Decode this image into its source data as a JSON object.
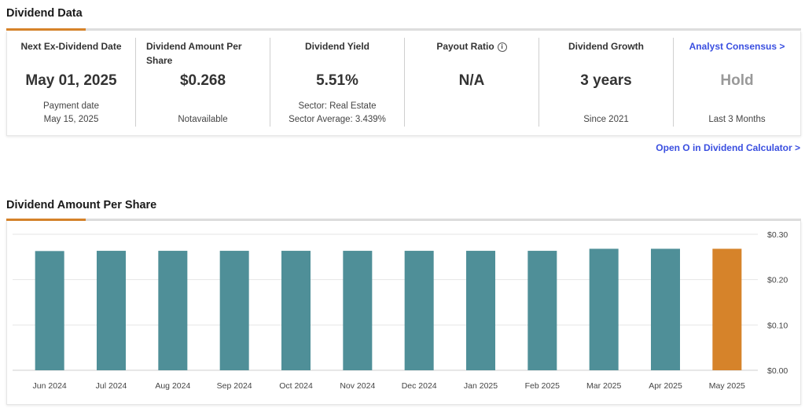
{
  "dividend_data": {
    "title": "Dividend Data",
    "next_ex_dividend": {
      "label": "Next Ex-Dividend Date",
      "value": "May 01, 2025",
      "sub1": "Payment date",
      "sub2": "May 15, 2025"
    },
    "amount_per_share": {
      "label_line1": "Dividend Amount Per",
      "label_line2": "Share",
      "value": "$0.268",
      "sub": "Notavailable"
    },
    "dividend_yield": {
      "label": "Dividend Yield",
      "value": "5.51%",
      "sub1": "Sector: Real Estate",
      "sub2": "Sector Average: 3.439%"
    },
    "payout_ratio": {
      "label": "Payout Ratio",
      "value": "N/A",
      "info_icon": "info-icon"
    },
    "dividend_growth": {
      "label": "Dividend Growth",
      "value": "3 years",
      "sub": "Since 2021"
    },
    "analyst_consensus": {
      "label": "Analyst Consensus >",
      "value": "Hold",
      "sub": "Last 3 Months"
    },
    "calculator_link": "Open O in Dividend Calculator >"
  },
  "chart_section": {
    "title": "Dividend Amount Per Share"
  },
  "colors": {
    "accent": "#d6832a",
    "bar": "#4f8f98",
    "highlight_bar": "#d6832a",
    "link": "#3a4fe0"
  },
  "chart_data": {
    "type": "bar",
    "title": "Dividend Amount Per Share",
    "categories": [
      "Jun 2024",
      "Jul 2024",
      "Aug 2024",
      "Sep 2024",
      "Oct 2024",
      "Nov 2024",
      "Dec 2024",
      "Jan 2025",
      "Feb 2025",
      "Mar 2025",
      "Apr 2025",
      "May 2025"
    ],
    "values": [
      0.263,
      0.2635,
      0.2635,
      0.2635,
      0.2635,
      0.2635,
      0.2635,
      0.2635,
      0.2635,
      0.268,
      0.268,
      0.268
    ],
    "highlight_index": 11,
    "ylim": [
      0,
      0.3
    ],
    "yticks": [
      0.0,
      0.1,
      0.2,
      0.3
    ],
    "ytick_labels": [
      "$0.00",
      "$0.10",
      "$0.20",
      "$0.30"
    ],
    "y_axis_side": "right",
    "grid": true
  }
}
